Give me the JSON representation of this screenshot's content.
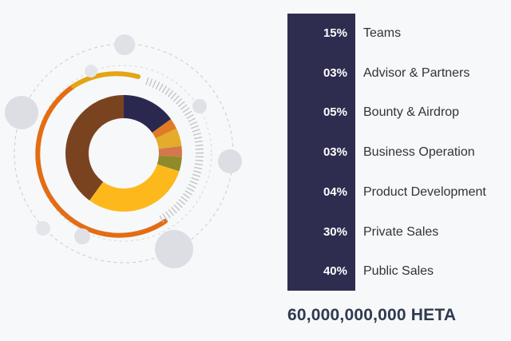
{
  "chart_data": {
    "type": "pie",
    "categories": [
      "Teams",
      "Advisor & Partners",
      "Bounty & Airdrop",
      "Business Operation",
      "Product Development",
      "Private Sales",
      "Public Sales"
    ],
    "labels": [
      "15%",
      "03%",
      "05%",
      "03%",
      "04%",
      "30%",
      "40%"
    ],
    "values": [
      15,
      3,
      5,
      3,
      4,
      30,
      40
    ],
    "colors": [
      "#2b2850",
      "#e07a24",
      "#e3ac2a",
      "#d4774a",
      "#8f8a2a",
      "#fdb91c",
      "#7a4320"
    ],
    "style": "donut"
  },
  "total": "60,000,000,000 HETA",
  "accent": {
    "bar": "#2e2d50",
    "arc_orange": "#e36d14",
    "arc_gold": "#e3a514"
  }
}
